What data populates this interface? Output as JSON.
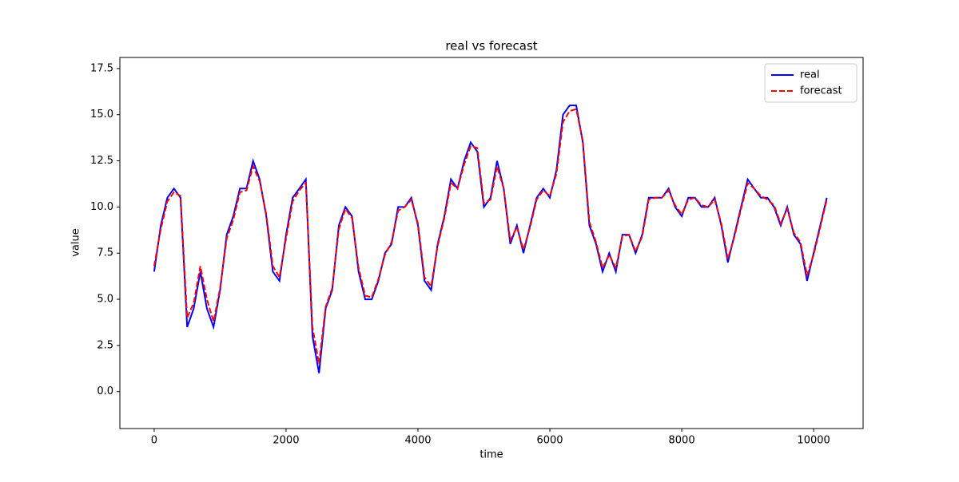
{
  "chart_data": {
    "type": "line",
    "title": "real vs forecast",
    "x_label": "time",
    "y_label": "value",
    "x": [
      0,
      100,
      200,
      300,
      400,
      500,
      600,
      700,
      800,
      900,
      1000,
      1100,
      1200,
      1300,
      1400,
      1500,
      1600,
      1700,
      1800,
      1900,
      2000,
      2100,
      2200,
      2300,
      2400,
      2500,
      2600,
      2700,
      2800,
      2900,
      3000,
      3100,
      3200,
      3300,
      3400,
      3500,
      3600,
      3700,
      3800,
      3900,
      4000,
      4100,
      4200,
      4300,
      4400,
      4500,
      4600,
      4700,
      4800,
      4900,
      5000,
      5100,
      5200,
      5300,
      5400,
      5500,
      5600,
      5700,
      5800,
      5900,
      6000,
      6100,
      6200,
      6300,
      6400,
      6500,
      6600,
      6700,
      6800,
      6900,
      7000,
      7100,
      7200,
      7300,
      7400,
      7500,
      7600,
      7700,
      7800,
      7900,
      8000,
      8100,
      8200,
      8300,
      8400,
      8500,
      8600,
      8700,
      8800,
      8900,
      9000,
      9100,
      9200,
      9300,
      9400,
      9500,
      9600,
      9700,
      9800,
      9900,
      10000,
      10100,
      10200
    ],
    "series": [
      {
        "name": "real",
        "color": "#0000ff",
        "dash": false,
        "values": [
          6.5,
          9.0,
          10.5,
          11.0,
          10.5,
          3.5,
          4.5,
          6.5,
          4.5,
          3.5,
          5.5,
          8.5,
          9.5,
          11.0,
          11.0,
          12.5,
          11.5,
          9.5,
          6.5,
          6.0,
          8.5,
          10.5,
          11.0,
          11.5,
          3.0,
          1.0,
          4.5,
          5.5,
          9.0,
          10.0,
          9.5,
          6.5,
          5.0,
          5.0,
          6.0,
          7.5,
          8.0,
          10.0,
          10.0,
          10.5,
          9.0,
          6.0,
          5.5,
          8.0,
          9.5,
          11.5,
          11.0,
          12.5,
          13.5,
          13.0,
          10.0,
          10.5,
          12.5,
          11.0,
          8.0,
          9.0,
          7.5,
          9.0,
          10.5,
          11.0,
          10.5,
          12.0,
          15.0,
          15.5,
          15.5,
          13.5,
          9.0,
          8.0,
          6.5,
          7.5,
          6.5,
          8.5,
          8.5,
          7.5,
          8.5,
          10.5,
          10.5,
          10.5,
          11.0,
          10.0,
          9.5,
          10.5,
          10.5,
          10.0,
          10.0,
          10.5,
          9.0,
          7.0,
          8.5,
          10.0,
          11.5,
          11.0,
          10.5,
          10.5,
          10.0,
          9.0,
          10.0,
          8.5,
          8.0,
          6.0,
          7.5,
          9.0,
          10.5
        ]
      },
      {
        "name": "forecast",
        "color": "#ff0000",
        "dash": true,
        "values": [
          6.8,
          8.8,
          10.3,
          10.8,
          10.6,
          4.0,
          4.8,
          6.8,
          5.0,
          3.8,
          5.6,
          8.3,
          9.3,
          10.8,
          10.9,
          12.2,
          11.4,
          9.6,
          6.8,
          6.2,
          8.3,
          10.3,
          10.9,
          11.3,
          3.5,
          1.5,
          4.6,
          5.6,
          8.8,
          9.9,
          9.4,
          6.7,
          5.2,
          5.1,
          6.1,
          7.4,
          8.1,
          9.8,
          10.0,
          10.4,
          9.1,
          6.2,
          5.7,
          7.9,
          9.4,
          11.3,
          11.0,
          12.3,
          13.3,
          13.2,
          10.2,
          10.4,
          12.2,
          11.0,
          8.2,
          8.9,
          7.7,
          8.9,
          10.4,
          10.9,
          10.6,
          11.8,
          14.6,
          15.2,
          15.3,
          13.6,
          9.2,
          8.1,
          6.7,
          7.4,
          6.7,
          8.4,
          8.5,
          7.6,
          8.4,
          10.4,
          10.5,
          10.5,
          10.9,
          10.1,
          9.6,
          10.4,
          10.5,
          10.1,
          10.0,
          10.4,
          9.1,
          7.2,
          8.4,
          9.9,
          11.3,
          11.0,
          10.6,
          10.4,
          10.1,
          9.1,
          9.9,
          8.6,
          8.1,
          6.3,
          7.4,
          8.9,
          10.4
        ]
      }
    ],
    "xlim": [
      -520,
      10750
    ],
    "ylim": [
      -2,
      18.1
    ],
    "xticks": [
      0,
      2000,
      4000,
      6000,
      8000,
      10000
    ],
    "yticks": [
      {
        "value": 0,
        "label": "0.0"
      },
      {
        "value": 2.5,
        "label": "2.5"
      },
      {
        "value": 5,
        "label": "5.0"
      },
      {
        "value": 7.5,
        "label": "7.5"
      },
      {
        "value": 10,
        "label": "10.0"
      },
      {
        "value": 12.5,
        "label": "12.5"
      },
      {
        "value": 15,
        "label": "15.0"
      },
      {
        "value": 17.5,
        "label": "17.5"
      }
    ],
    "grid": false,
    "legend": "upper-right"
  }
}
